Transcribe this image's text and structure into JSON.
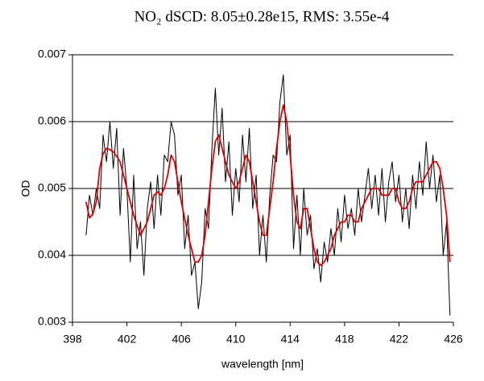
{
  "chart_data": {
    "type": "line",
    "title": "NO₂ dSCD:  8.05±0.28e15, RMS: 3.55e-4",
    "x_label": "wavelength [nm]",
    "y_label": "OD",
    "x": [
      399,
      399.25,
      399.5,
      399.75,
      400,
      400.25,
      400.5,
      400.75,
      401,
      401.25,
      401.5,
      401.75,
      402,
      402.25,
      402.5,
      402.75,
      403,
      403.25,
      403.5,
      403.75,
      404,
      404.25,
      404.5,
      404.75,
      405,
      405.25,
      405.5,
      405.75,
      406,
      406.25,
      406.5,
      406.75,
      407,
      407.25,
      407.5,
      407.75,
      408,
      408.25,
      408.5,
      408.75,
      409,
      409.25,
      409.5,
      409.75,
      410,
      410.25,
      410.5,
      410.75,
      411,
      411.25,
      411.5,
      411.75,
      412,
      412.25,
      412.5,
      412.75,
      413,
      413.25,
      413.5,
      413.75,
      414,
      414.25,
      414.5,
      414.75,
      415,
      415.25,
      415.5,
      415.75,
      416,
      416.25,
      416.5,
      416.75,
      417,
      417.25,
      417.5,
      417.75,
      418,
      418.25,
      418.5,
      418.75,
      419,
      419.25,
      419.5,
      419.75,
      420,
      420.25,
      420.5,
      420.75,
      421,
      421.25,
      421.5,
      421.75,
      422,
      422.25,
      422.5,
      422.75,
      423,
      423.25,
      423.5,
      423.75,
      424,
      424.25,
      424.5,
      424.75,
      425,
      425.25,
      425.5,
      425.75
    ],
    "series": [
      {
        "color": "#000000",
        "width": 1,
        "values": [
          0.0043,
          0.0049,
          0.0046,
          0.005,
          0.0047,
          0.0058,
          0.0054,
          0.006,
          0.0053,
          0.0059,
          0.0046,
          0.0056,
          0.005,
          0.0039,
          0.0052,
          0.0041,
          0.0045,
          0.0037,
          0.0047,
          0.0051,
          0.0044,
          0.0052,
          0.0046,
          0.0055,
          0.0054,
          0.006,
          0.0058,
          0.0049,
          0.0052,
          0.0041,
          0.0046,
          0.0037,
          0.0039,
          0.0032,
          0.0036,
          0.0047,
          0.0044,
          0.0056,
          0.0065,
          0.0055,
          0.0062,
          0.0051,
          0.0057,
          0.0046,
          0.0053,
          0.0048,
          0.0058,
          0.0051,
          0.0059,
          0.0047,
          0.0052,
          0.004,
          0.0046,
          0.0039,
          0.0049,
          0.0055,
          0.0054,
          0.0063,
          0.0067,
          0.0055,
          0.0058,
          0.0041,
          0.0049,
          0.004,
          0.005,
          0.0043,
          0.0046,
          0.0038,
          0.0041,
          0.0036,
          0.0042,
          0.0039,
          0.0044,
          0.004,
          0.0047,
          0.0042,
          0.0049,
          0.0044,
          0.0047,
          0.0043,
          0.005,
          0.0045,
          0.0049,
          0.0053,
          0.0047,
          0.0052,
          0.0046,
          0.0053,
          0.0045,
          0.0051,
          0.0054,
          0.0048,
          0.0052,
          0.0045,
          0.005,
          0.0044,
          0.0052,
          0.0047,
          0.0054,
          0.0049,
          0.0057,
          0.005,
          0.0055,
          0.0048,
          0.0052,
          0.004,
          0.0045,
          0.0031
        ]
      },
      {
        "color": "#dd0000",
        "width": 1.8,
        "values": [
          0.0048,
          0.00456,
          0.00462,
          0.0048,
          0.0053,
          0.00552,
          0.0056,
          0.00558,
          0.00555,
          0.00548,
          0.0054,
          0.0052,
          0.005,
          0.0048,
          0.0046,
          0.00445,
          0.0043,
          0.0044,
          0.0045,
          0.0047,
          0.0049,
          0.00495,
          0.0049,
          0.005,
          0.0052,
          0.0055,
          0.0054,
          0.0051,
          0.0048,
          0.00455,
          0.0043,
          0.0041,
          0.0039,
          0.0039,
          0.004,
          0.0043,
          0.0048,
          0.0053,
          0.0057,
          0.0058,
          0.0056,
          0.0054,
          0.0052,
          0.0051,
          0.005,
          0.0051,
          0.0053,
          0.0055,
          0.0054,
          0.0051,
          0.0048,
          0.0045,
          0.0043,
          0.0043,
          0.0047,
          0.0051,
          0.0056,
          0.006,
          0.00625,
          0.006,
          0.0055,
          0.0049,
          0.0045,
          0.0044,
          0.0047,
          0.0047,
          0.0044,
          0.0041,
          0.0039,
          0.00385,
          0.0039,
          0.004,
          0.0041,
          0.0043,
          0.0044,
          0.0045,
          0.0045,
          0.0046,
          0.0046,
          0.0045,
          0.0045,
          0.0047,
          0.0048,
          0.0049,
          0.005,
          0.005,
          0.005,
          0.0049,
          0.0049,
          0.0049,
          0.005,
          0.005,
          0.0048,
          0.0047,
          0.0047,
          0.0048,
          0.005,
          0.0051,
          0.0051,
          0.0051,
          0.0052,
          0.0053,
          0.0054,
          0.0054,
          0.0053,
          0.005,
          0.0046,
          0.0039
        ]
      }
    ],
    "xlim": [
      398,
      426
    ],
    "xticks": [
      398,
      402,
      406,
      410,
      414,
      418,
      422,
      426
    ],
    "ylim": [
      0.003,
      0.007
    ],
    "yticks": [
      0.003,
      0.004,
      0.005,
      0.006,
      0.007
    ],
    "grid": true
  }
}
